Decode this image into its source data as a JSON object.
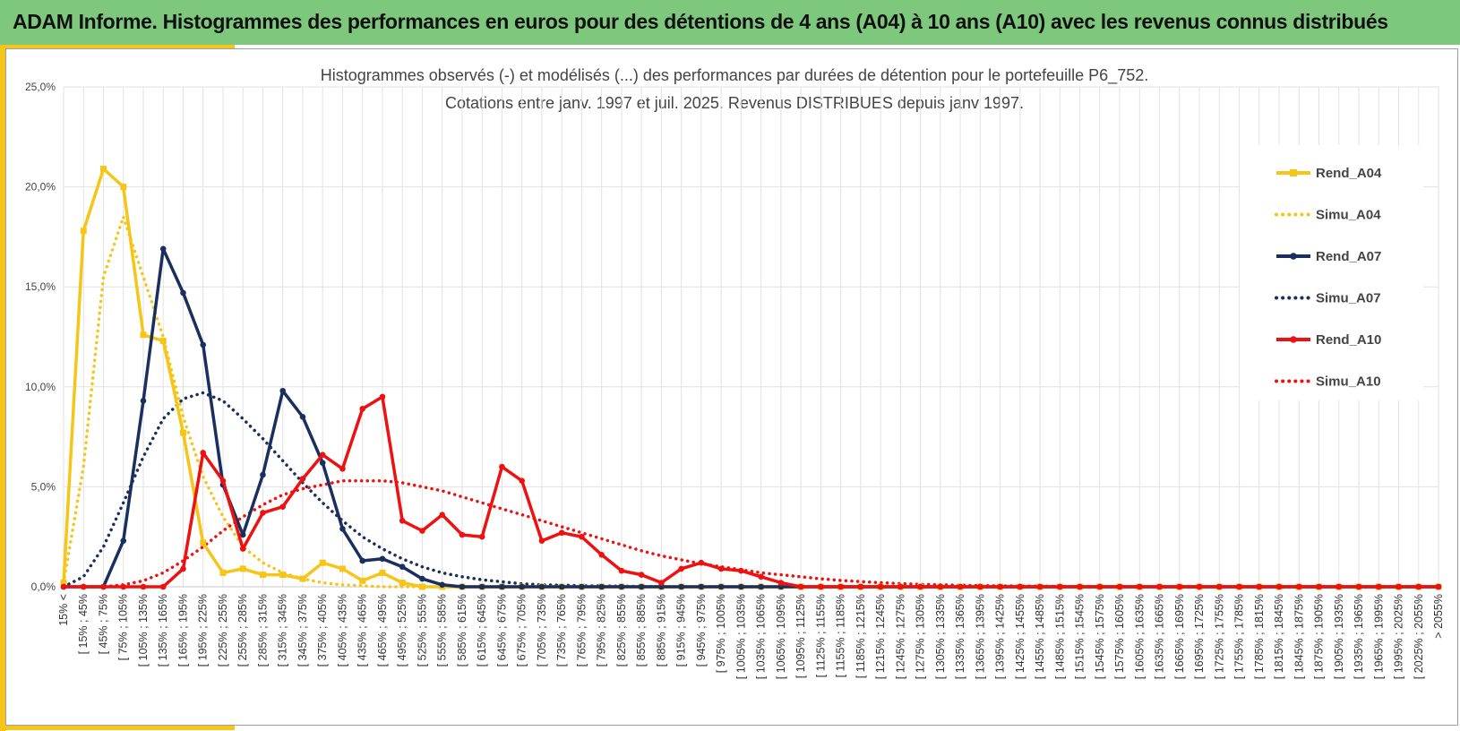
{
  "page": {
    "title": "ADAM Informe. Histogrammes des performances en euros pour des détentions de 4 ans (A04) à 10 ans (A10) avec les revenus connus distribués"
  },
  "colors": {
    "banner": "#7ec87e",
    "accent": "#f5c518",
    "A04": "#f5c518",
    "A07": "#1a2f5e",
    "A10": "#ee1111"
  },
  "chart_data": {
    "type": "line",
    "title_line1": "Histogrammes observés (-) et modélisés (...) des performances par durées de détention pour le portefeuille P6_752.",
    "title_line2": "Cotations entre janv. 1997 et juil. 2025. Revenus DISTRIBUES depuis janv 1997.",
    "xlabel": "",
    "ylabel": "",
    "ylim": [
      0,
      25
    ],
    "yticks": [
      "0,0%",
      "5,0%",
      "10,0%",
      "15,0%",
      "20,0%",
      "25,0%"
    ],
    "grid": true,
    "legend_position": "right",
    "categories": [
      "15% <",
      "[ 15% ; 45%",
      "[ 45% ; 75%",
      "[ 75% ; 105%",
      "[ 105% ; 135%",
      "[ 135% ; 165%",
      "[ 165% ; 195%",
      "[ 195% ; 225%",
      "[ 225% ; 255%",
      "[ 255% ; 285%",
      "[ 285% ; 315%",
      "[ 315% ; 345%",
      "[ 345% ; 375%",
      "[ 375% ; 405%",
      "[ 405% ; 435%",
      "[ 435% ; 465%",
      "[ 465% ; 495%",
      "[ 495% ; 525%",
      "[ 525% ; 555%",
      "[ 555% ; 585%",
      "[ 585% ; 615%",
      "[ 615% ; 645%",
      "[ 645% ; 675%",
      "[ 675% ; 705%",
      "[ 705% ; 735%",
      "[ 735% ; 765%",
      "[ 765% ; 795%",
      "[ 795% ; 825%",
      "[ 825% ; 855%",
      "[ 855% ; 885%",
      "[ 885% ; 915%",
      "[ 915% ; 945%",
      "[ 945% ; 975%",
      "[ 975% ; 1005%",
      "[ 1005% ; 1035%",
      "[ 1035% ; 1065%",
      "[ 1065% ; 1095%",
      "[ 1095% ; 1125%",
      "[ 1125% ; 1155%",
      "[ 1155% ; 1185%",
      "[ 1185% ; 1215%",
      "[ 1215% ; 1245%",
      "[ 1245% ; 1275%",
      "[ 1275% ; 1305%",
      "[ 1305% ; 1335%",
      "[ 1335% ; 1365%",
      "[ 1365% ; 1395%",
      "[ 1395% ; 1425%",
      "[ 1425% ; 1455%",
      "[ 1455% ; 1485%",
      "[ 1485% ; 1515%",
      "[ 1515% ; 1545%",
      "[ 1545% ; 1575%",
      "[ 1575% ; 1605%",
      "[ 1605% ; 1635%",
      "[ 1635% ; 1665%",
      "[ 1665% ; 1695%",
      "[ 1695% ; 1725%",
      "[ 1725% ; 1755%",
      "[ 1755% ; 1785%",
      "[ 1785% ; 1815%",
      "[ 1815% ; 1845%",
      "[ 1845% ; 1875%",
      "[ 1875% ; 1905%",
      "[ 1905% ; 1935%",
      "[ 1935% ; 1965%",
      "[ 1965% ; 1995%",
      "[ 1995% ; 2025%",
      "[ 2025% ; 2055%",
      "> 2055%"
    ],
    "series": [
      {
        "name": "Rend_A04",
        "style": "solid",
        "marker": "square",
        "color": "#f5c518",
        "values": [
          0.2,
          17.8,
          20.9,
          20.0,
          12.6,
          12.3,
          7.7,
          2.2,
          0.7,
          0.9,
          0.6,
          0.6,
          0.4,
          1.2,
          0.9,
          0.3,
          0.7,
          0.2,
          0.0,
          0.0,
          0,
          0,
          0,
          0,
          0,
          0,
          0,
          0,
          0,
          0,
          0,
          0,
          0,
          0,
          0,
          0,
          0,
          0,
          0,
          0,
          0,
          0,
          0,
          0,
          0,
          0,
          0,
          0,
          0,
          0,
          0,
          0,
          0,
          0,
          0,
          0,
          0,
          0,
          0,
          0,
          0,
          0,
          0,
          0,
          0,
          0,
          0,
          0,
          0,
          0
        ]
      },
      {
        "name": "Simu_A04",
        "style": "dotted",
        "marker": "none",
        "color": "#f5c518",
        "values": [
          0.2,
          6.0,
          15.5,
          18.5,
          15.5,
          12.5,
          8.5,
          5.5,
          3.5,
          2.0,
          1.2,
          0.7,
          0.4,
          0.2,
          0.1,
          0.05,
          0,
          0,
          0,
          0,
          0,
          0,
          0,
          0,
          0,
          0,
          0,
          0,
          0,
          0,
          0,
          0,
          0,
          0,
          0,
          0,
          0,
          0,
          0,
          0,
          0,
          0,
          0,
          0,
          0,
          0,
          0,
          0,
          0,
          0,
          0,
          0,
          0,
          0,
          0,
          0,
          0,
          0,
          0,
          0,
          0,
          0,
          0,
          0,
          0,
          0,
          0,
          0,
          0,
          0
        ]
      },
      {
        "name": "Rend_A07",
        "style": "solid",
        "marker": "circle",
        "color": "#1a2f5e",
        "values": [
          0,
          0,
          0,
          2.3,
          9.3,
          16.9,
          14.7,
          12.1,
          5.1,
          2.6,
          5.6,
          9.8,
          8.5,
          6.2,
          2.9,
          1.3,
          1.4,
          1.0,
          0.4,
          0.1,
          0,
          0,
          0,
          0,
          0,
          0,
          0,
          0,
          0,
          0,
          0,
          0,
          0,
          0,
          0,
          0,
          0,
          0,
          0,
          0,
          0,
          0,
          0,
          0,
          0,
          0,
          0,
          0,
          0,
          0,
          0,
          0,
          0,
          0,
          0,
          0,
          0,
          0,
          0,
          0,
          0,
          0,
          0,
          0,
          0,
          0,
          0,
          0,
          0,
          0
        ]
      },
      {
        "name": "Simu_A07",
        "style": "dotted",
        "marker": "none",
        "color": "#1a2f5e",
        "values": [
          0,
          0.5,
          2.0,
          4.2,
          6.5,
          8.4,
          9.4,
          9.7,
          9.3,
          8.4,
          7.4,
          6.3,
          5.2,
          4.2,
          3.3,
          2.5,
          1.9,
          1.4,
          1.0,
          0.7,
          0.5,
          0.35,
          0.25,
          0.15,
          0.1,
          0.08,
          0.05,
          0.04,
          0.03,
          0.02,
          0,
          0,
          0,
          0,
          0,
          0,
          0,
          0,
          0,
          0,
          0,
          0,
          0,
          0,
          0,
          0,
          0,
          0,
          0,
          0,
          0,
          0,
          0,
          0,
          0,
          0,
          0,
          0,
          0,
          0,
          0,
          0,
          0,
          0,
          0,
          0,
          0,
          0,
          0,
          0
        ]
      },
      {
        "name": "Rend_A10",
        "style": "solid",
        "marker": "circle",
        "color": "#ee1111",
        "values": [
          0,
          0,
          0,
          0,
          0,
          0,
          0.9,
          6.7,
          5.3,
          1.9,
          3.7,
          4.0,
          5.4,
          6.6,
          5.9,
          8.9,
          9.5,
          3.3,
          2.8,
          3.6,
          2.6,
          2.5,
          6.0,
          5.3,
          2.3,
          2.7,
          2.5,
          1.6,
          0.8,
          0.6,
          0.2,
          0.9,
          1.2,
          0.9,
          0.8,
          0.5,
          0.2,
          0,
          0,
          0,
          0,
          0,
          0,
          0,
          0,
          0,
          0,
          0,
          0,
          0,
          0,
          0,
          0,
          0,
          0,
          0,
          0,
          0,
          0,
          0,
          0,
          0,
          0,
          0,
          0,
          0,
          0,
          0,
          0,
          0
        ]
      },
      {
        "name": "Simu_A10",
        "style": "dotted",
        "marker": "none",
        "color": "#ee1111",
        "values": [
          0,
          0,
          0,
          0.1,
          0.3,
          0.7,
          1.3,
          2.0,
          2.8,
          3.5,
          4.1,
          4.6,
          4.9,
          5.1,
          5.3,
          5.3,
          5.3,
          5.2,
          5.0,
          4.8,
          4.5,
          4.2,
          3.9,
          3.6,
          3.3,
          3.0,
          2.7,
          2.4,
          2.1,
          1.8,
          1.55,
          1.35,
          1.15,
          1.0,
          0.85,
          0.7,
          0.6,
          0.5,
          0.4,
          0.32,
          0.26,
          0.2,
          0.16,
          0.12,
          0.1,
          0.08,
          0.06,
          0.05,
          0.04,
          0.03,
          0.02,
          0.01,
          0,
          0,
          0,
          0,
          0,
          0,
          0,
          0,
          0,
          0,
          0,
          0,
          0,
          0,
          0,
          0,
          0,
          0
        ]
      }
    ]
  }
}
